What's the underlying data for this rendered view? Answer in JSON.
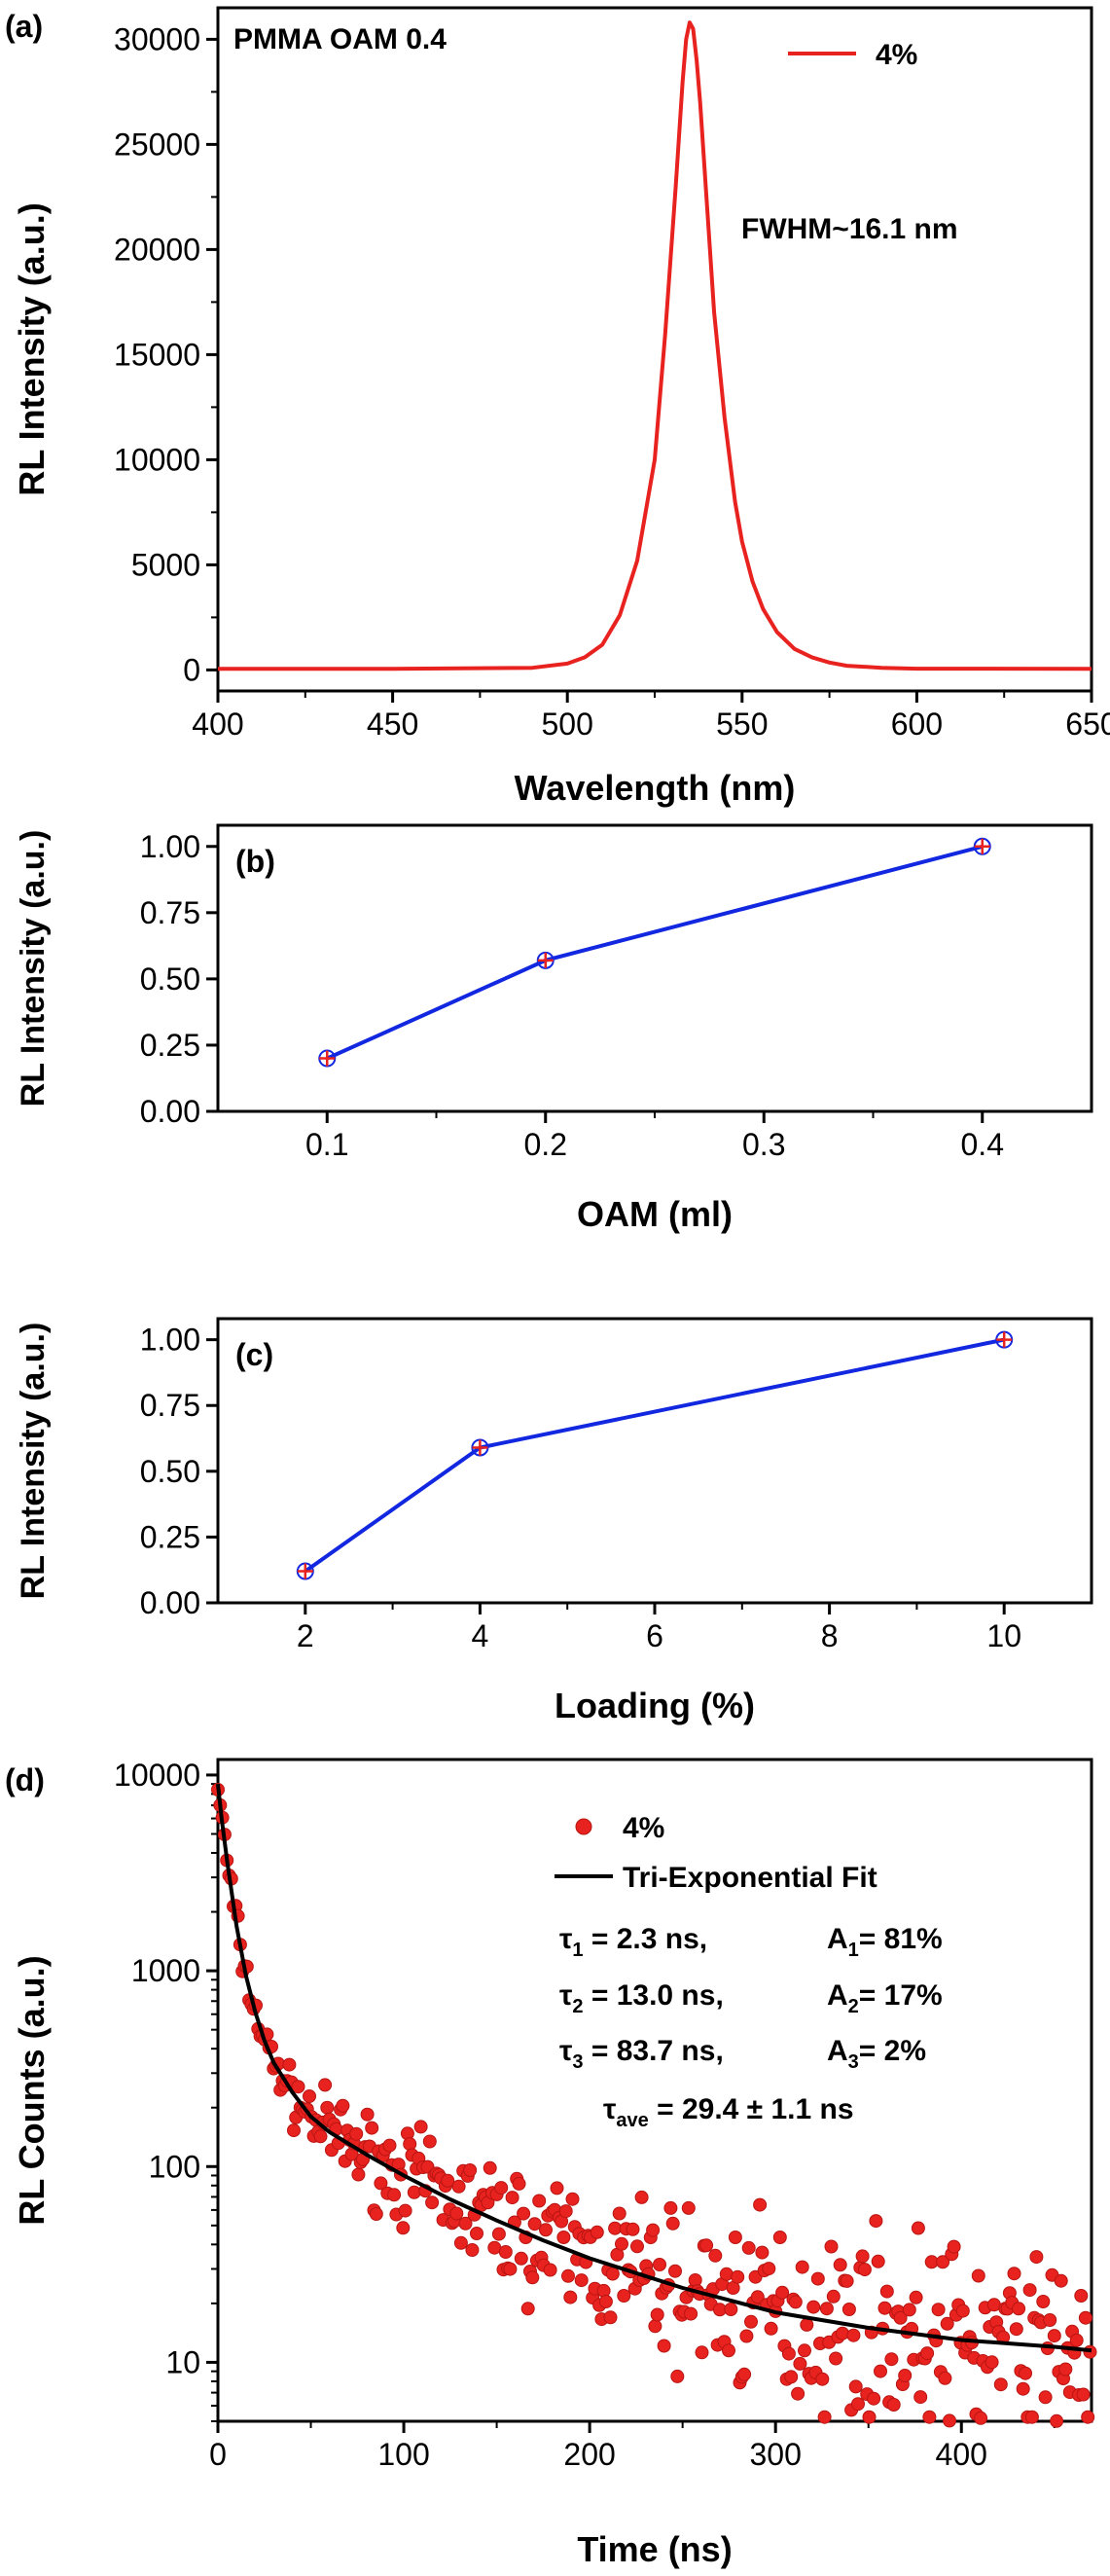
{
  "colors": {
    "red": "#e8221f",
    "blue": "#1228e0",
    "black": "#000000"
  },
  "chart_data": [
    {
      "panel": "a",
      "panel_label": "(a)",
      "type": "line",
      "annotation_top": "PMMA OAM 0.4",
      "annotation_fwhm": "FWHM~16.1 nm",
      "xlabel": "Wavelength (nm)",
      "ylabel": "RL Intensity (a.u.)",
      "xlim": [
        400,
        650
      ],
      "ylim": [
        -1000,
        31500
      ],
      "x_ticks": [
        "400",
        "450",
        "500",
        "550",
        "600",
        "650"
      ],
      "y_ticks": [
        "0",
        "5000",
        "10000",
        "15000",
        "20000",
        "25000",
        "30000"
      ],
      "legend_position": "top-right",
      "series": [
        {
          "name": "4%",
          "color": "#e8221f",
          "x": [
            400,
            450,
            490,
            500,
            505,
            510,
            515,
            520,
            525,
            528,
            531,
            533,
            534,
            535,
            536,
            537,
            538,
            540,
            542,
            545,
            548,
            550,
            553,
            556,
            560,
            565,
            570,
            575,
            580,
            590,
            600,
            650
          ],
          "y": [
            50,
            50,
            100,
            300,
            600,
            1200,
            2600,
            5200,
            10000,
            16000,
            23000,
            28000,
            30000,
            30800,
            30500,
            29000,
            27000,
            22000,
            17000,
            12000,
            8000,
            6100,
            4200,
            2900,
            1800,
            1000,
            600,
            350,
            200,
            100,
            60,
            50
          ]
        }
      ]
    },
    {
      "panel": "b",
      "panel_label": "(b)",
      "type": "line",
      "xlabel": "OAM (ml)",
      "ylabel": "RL Intensity (a.u.)",
      "xlim": [
        0.05,
        0.45
      ],
      "ylim": [
        0,
        1.08
      ],
      "x_ticks": [
        "0.1",
        "0.2",
        "0.3",
        "0.4"
      ],
      "y_ticks": [
        "0.00",
        "0.25",
        "0.50",
        "0.75",
        "1.00"
      ],
      "series": [
        {
          "x": [
            0.1,
            0.2,
            0.4
          ],
          "y": [
            0.2,
            0.57,
            1.0
          ],
          "color": "#1228e0"
        }
      ]
    },
    {
      "panel": "c",
      "panel_label": "(c)",
      "type": "line",
      "xlabel": "Loading (%)",
      "ylabel": "RL Intensity (a.u.)",
      "xlim": [
        1,
        11
      ],
      "ylim": [
        0,
        1.08
      ],
      "x_ticks": [
        "2",
        "4",
        "6",
        "8",
        "10"
      ],
      "y_ticks": [
        "0.00",
        "0.25",
        "0.50",
        "0.75",
        "1.00"
      ],
      "series": [
        {
          "x": [
            2,
            4,
            10
          ],
          "y": [
            0.12,
            0.59,
            1.0
          ],
          "color": "#1228e0"
        }
      ]
    },
    {
      "panel": "d",
      "panel_label": "(d)",
      "type": "scatter",
      "xlabel": "Time (ns)",
      "ylabel": "RL Counts (a.u.)",
      "xlim": [
        0,
        470
      ],
      "ylim": [
        5,
        12000
      ],
      "log_y": true,
      "x_ticks": [
        "0",
        "100",
        "200",
        "300",
        "400"
      ],
      "y_ticks": [
        "10",
        "100",
        "1000",
        "10000"
      ],
      "legend_position": "top-right",
      "legend": [
        {
          "name": "4%",
          "style": "markers",
          "color": "#e8221f"
        },
        {
          "name": "Tri-Exponential Fit",
          "style": "line",
          "color": "#000000"
        }
      ],
      "fit": {
        "tau1": "τ",
        "tau1_sub": "1",
        "tau1_val": " = 2.3 ns,",
        "A1": "A",
        "A1_sub": "1",
        "A1_val": "= 81%",
        "tau2": "τ",
        "tau2_sub": "2",
        "tau2_val": " = 13.0 ns,",
        "A2": "A",
        "A2_sub": "2",
        "A2_val": "= 17%",
        "tau3": "τ",
        "tau3_sub": "3",
        "tau3_val": " = 83.7 ns,",
        "A3": "A",
        "A3_sub": "3",
        "A3_val": "= 2%",
        "tau_ave": "τ",
        "tau_ave_sub": "ave",
        "tau_ave_val": " = 29.4 ± 1.1 ns"
      },
      "fit_curve": {
        "x": [
          0,
          2,
          5,
          10,
          15,
          20,
          25,
          30,
          40,
          50,
          60,
          80,
          100,
          125,
          150,
          175,
          200,
          250,
          300,
          350,
          400,
          450,
          470
        ],
        "y": [
          9000,
          6000,
          3600,
          1700,
          950,
          620,
          440,
          340,
          240,
          180,
          150,
          115,
          90,
          68,
          53,
          42,
          34,
          24,
          18,
          15,
          13,
          12,
          11.5
        ]
      }
    }
  ]
}
